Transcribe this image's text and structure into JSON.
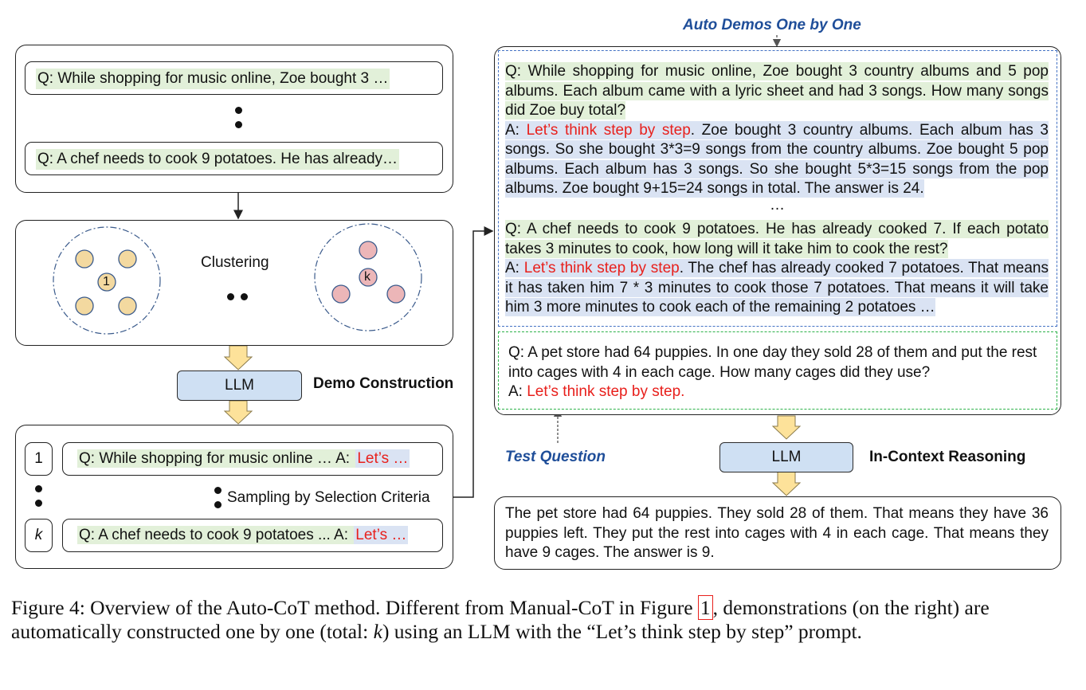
{
  "left_top": {
    "q1": "Q: While shopping for music online, Zoe bought 3 …",
    "q2": "Q: A chef needs to cook 9 potatoes. He has already…"
  },
  "clustering": {
    "label": "Clustering",
    "cluster_1_label": "1",
    "cluster_k_label": "k"
  },
  "demo_construction": {
    "llm_label": "LLM",
    "title": "Demo Construction"
  },
  "sampling": {
    "item1_index": "1",
    "item1_q": "Q: While shopping for music online … A: ",
    "item1_a": "Let’s …",
    "itemk_index": "k",
    "itemk_q": "Q: A chef needs to cook 9 potatoes ... A: ",
    "itemk_a": "Let’s …",
    "criteria_label": "Sampling by Selection Criteria"
  },
  "auto_demos": {
    "title": "Auto Demos One by One",
    "demo1_q": "Q: While shopping for music online, Zoe bought 3 country albums and 5 pop albums. Each album came with a lyric sheet and had 3 songs. How many songs did Zoe buy total?",
    "demo1_a_prefix": "A: ",
    "demo1_a_trigger": "Let’s think step by step",
    "demo1_a_rest": ". Zoe bought 3 country albums. Each album has 3 songs. So she bought 3*3=9 songs from the country albums. Zoe bought 5 pop albums. Each album has 3 songs. So she bought 5*3=15 songs from the pop albums. Zoe bought 9+15=24 songs in total. The answer is 24.",
    "ellipsis": "…",
    "demo2_q": "Q: A chef needs to cook 9 potatoes. He has already cooked 7. If each potato takes 3 minutes to cook, how long will it take him to cook the rest?",
    "demo2_a_prefix": "A: ",
    "demo2_a_trigger": "Let’s think step by step",
    "demo2_a_rest": ". The chef has already cooked 7 potatoes. That means it has taken him 7 * 3 minutes to cook those 7 potatoes. That means it will take him 3 more minutes to cook each of the remaining 2 potatoes …"
  },
  "test": {
    "question": "Q: A pet store had 64 puppies. In one day they sold 28 of them and put the rest into cages with 4 in each cage. How many cages did they use?",
    "a_prefix": "A: ",
    "a_trigger": "Let’s think step by step.",
    "label": "Test Question"
  },
  "reasoning": {
    "llm_label": "LLM",
    "title": "In-Context Reasoning",
    "output": "The pet store had 64 puppies. They sold 28 of them. That means they have 36 puppies left. They put the rest into cages with 4 in each cage. That means they have 9 cages. The answer is 9."
  },
  "caption": {
    "part1": "Figure 4: Overview of the Auto-CoT method. Different from Manual-CoT in Figure ",
    "ref": "1",
    "part2": ", demonstrations (on the right) are automatically constructed one by one (total: ",
    "k": "k",
    "part3": ") using an LLM with the “Let’s think step by step” prompt."
  },
  "colors": {
    "question_bg": "#e2f0d9",
    "answer_bg": "#dae3f3",
    "trigger_text": "#e8201c",
    "llm_fill": "#cfe0f3",
    "arrow_fill": "#fde29a",
    "demo_border": "#4472c4",
    "test_border": "#2db24a"
  }
}
